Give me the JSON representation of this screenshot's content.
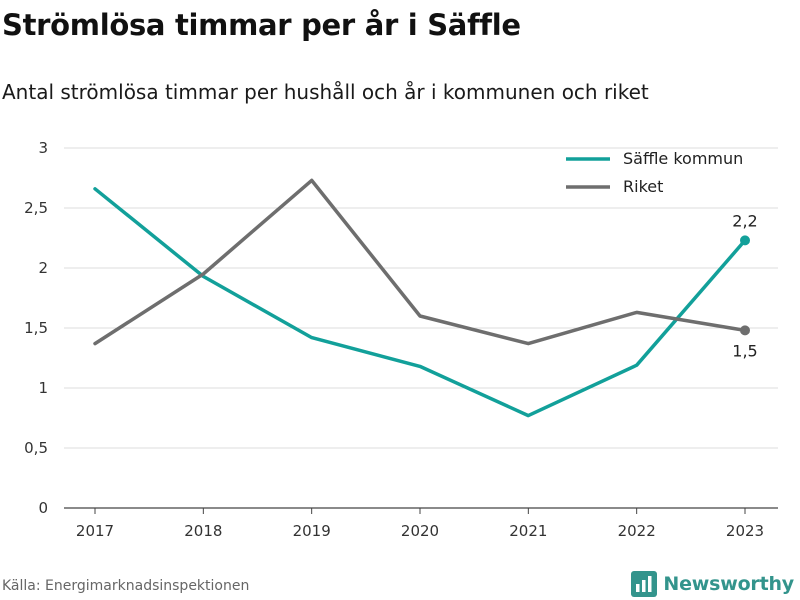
{
  "title": "Strömlösa timmar per år i Säffle",
  "subtitle": "Antal strömlösa timmar per hushåll och år i kommunen och riket",
  "source": "Källa: Energimarknadsinspektionen",
  "brand": {
    "name": "Newsworthy",
    "icon": "bar-chart-icon",
    "color": "#33948c"
  },
  "chart_data": {
    "type": "line",
    "x": [
      "2017",
      "2018",
      "2019",
      "2020",
      "2021",
      "2022",
      "2023"
    ],
    "ylim": [
      0,
      3
    ],
    "yticks": [
      {
        "value": 0,
        "label": "0"
      },
      {
        "value": 0.5,
        "label": "0,5"
      },
      {
        "value": 1,
        "label": "1"
      },
      {
        "value": 1.5,
        "label": "1,5"
      },
      {
        "value": 2,
        "label": "2"
      },
      {
        "value": 2.5,
        "label": "2,5"
      },
      {
        "value": 3,
        "label": "3"
      }
    ],
    "grid": true,
    "legend": "top-right",
    "series": [
      {
        "name": "Säffle kommun",
        "color": "#12a09a",
        "values": [
          2.66,
          1.93,
          1.42,
          1.18,
          0.77,
          1.19,
          2.23
        ],
        "end_label": "2,2",
        "end_label_position": "above"
      },
      {
        "name": "Riket",
        "color": "#6e6e6e",
        "values": [
          1.37,
          1.95,
          2.73,
          1.6,
          1.37,
          1.63,
          1.48
        ],
        "end_label": "1,5",
        "end_label_position": "below"
      }
    ]
  }
}
